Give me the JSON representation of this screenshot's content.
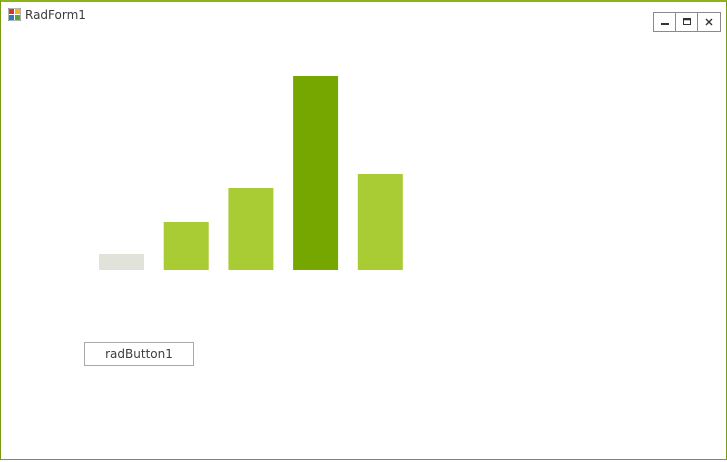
{
  "window": {
    "title": "RadForm1",
    "controls": [
      "minimize-icon",
      "maximize-icon",
      "close-icon"
    ],
    "border_color": "#7a9a14"
  },
  "button": {
    "label": "radButton1"
  },
  "chart_data": {
    "type": "bar",
    "categories": [
      "",
      "",
      "",
      "",
      ""
    ],
    "values": [
      8,
      24,
      41,
      97,
      48
    ],
    "colors": [
      "#e1e3db",
      "#a9cb34",
      "#a9cb34",
      "#76a700",
      "#a9cb34"
    ],
    "title": "",
    "xlabel": "",
    "ylabel": "",
    "ylim": [
      0,
      100
    ],
    "grid": false,
    "axes_visible": false,
    "legend": "none"
  }
}
